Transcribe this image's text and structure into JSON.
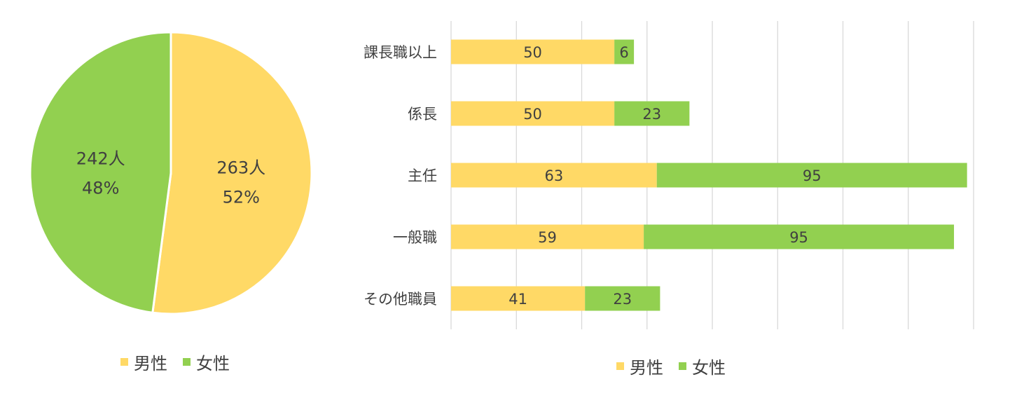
{
  "colors": {
    "male": "#FFD966",
    "female": "#92D050",
    "grid": "#D9D9D9",
    "text": "#404040"
  },
  "legend": {
    "male": "男性",
    "female": "女性"
  },
  "chart_data": [
    {
      "type": "pie",
      "slices": [
        {
          "name": "男性",
          "value": 263,
          "label": "263人",
          "percent": "52%"
        },
        {
          "name": "女性",
          "value": 242,
          "label": "242人",
          "percent": "48%"
        }
      ],
      "legend_position": "bottom"
    },
    {
      "type": "bar",
      "orientation": "horizontal",
      "stacked": true,
      "categories": [
        "課長職以上",
        "係長",
        "主任",
        "一般職",
        "その他職員"
      ],
      "series": [
        {
          "name": "男性",
          "values": [
            50,
            50,
            63,
            59,
            41
          ]
        },
        {
          "name": "女性",
          "values": [
            6,
            23,
            95,
            95,
            23
          ]
        }
      ],
      "xlim": [
        0,
        160
      ],
      "grid": true,
      "legend_position": "bottom"
    }
  ]
}
